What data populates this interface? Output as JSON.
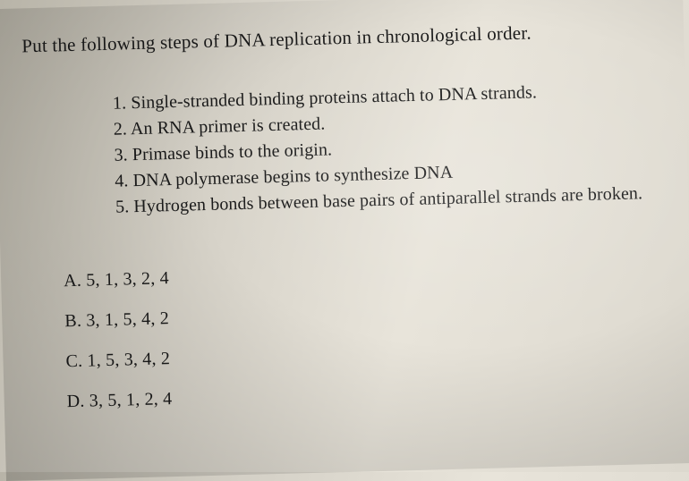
{
  "text_color": "#1a1a1a",
  "background_gradient": [
    "#b8b4a8",
    "#d4d0c6",
    "#e8e4da",
    "#dcd8ce"
  ],
  "font_family": "Times New Roman",
  "question_fontsize": 21,
  "step_fontsize": 20,
  "answer_fontsize": 20,
  "rotation_deg": -1.5,
  "question": "Put the following steps of DNA replication in chronological order.",
  "steps": {
    "s1": "1. Single-stranded binding proteins attach to DNA strands.",
    "s2": "2. An RNA primer is created.",
    "s3": "3. Primase binds to the origin.",
    "s4": "4. DNA polymerase begins to synthesize DNA",
    "s5": "5. Hydrogen bonds between base pairs of antiparallel strands are broken."
  },
  "answers": {
    "a": "A. 5, 1, 3, 2, 4",
    "b": "B. 3, 1, 5, 4, 2",
    "c": "C. 1, 5, 3, 4, 2",
    "d": "D. 3, 5, 1, 2, 4"
  }
}
